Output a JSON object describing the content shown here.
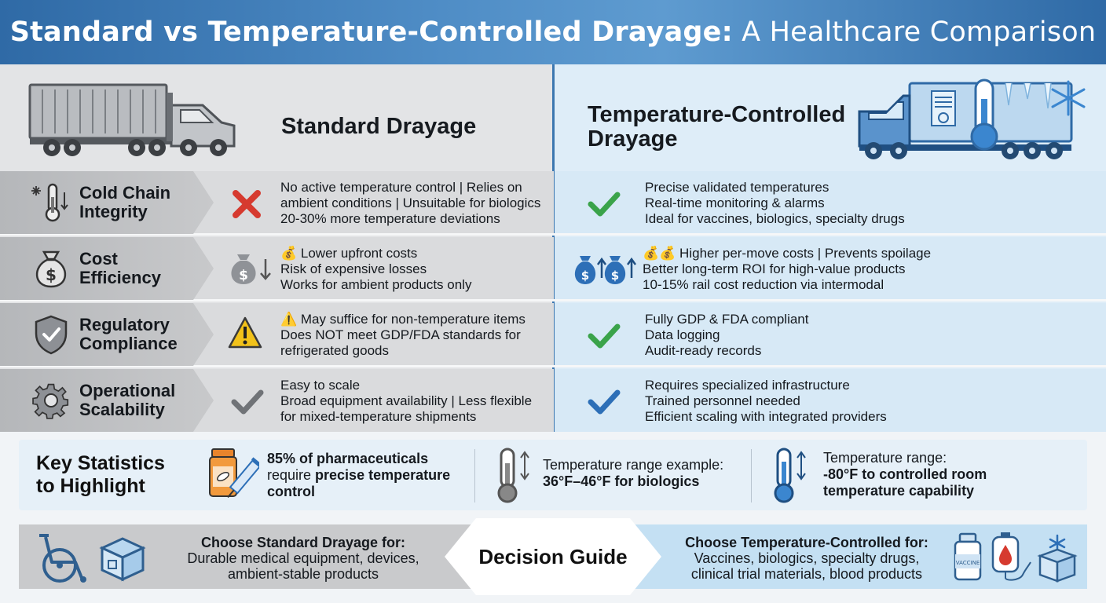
{
  "header": {
    "title_bold": "Standard vs Temperature-Controlled Drayage:",
    "title_rest": " A Healthcare Comparison"
  },
  "columns": {
    "standard": "Standard Drayage",
    "temp": "Temperature-Controlled Drayage"
  },
  "rows": [
    {
      "label": [
        "Cold Chain",
        "Integrity"
      ],
      "icon": "thermometer-snowflake-icon",
      "standard_mark": "red-x-icon",
      "temp_mark": "green-check-icon",
      "standard": [
        "No active temperature control | Relies on",
        "ambient conditions | Unsuitable for biologics",
        "20-30% more temperature deviations"
      ],
      "temp": [
        "Precise validated temperatures",
        "Real-time monitoring & alarms",
        "Ideal for vaccines, biologics, specialty drugs"
      ]
    },
    {
      "label": [
        "Cost",
        "Efficiency"
      ],
      "icon": "money-bag-icon",
      "standard_mark": "money-bag-down-icon",
      "temp_mark": "money-bags-up-icon",
      "standard": [
        "💰 Lower upfront costs",
        "Risk of expensive losses",
        "Works for ambient products only"
      ],
      "temp": [
        "💰💰 Higher per-move costs | Prevents spoilage",
        "Better long-term ROI for high-value products",
        "10-15% rail cost reduction via intermodal"
      ]
    },
    {
      "label": [
        "Regulatory",
        "Compliance"
      ],
      "icon": "shield-check-icon",
      "standard_mark": "warning-icon",
      "temp_mark": "green-check-icon",
      "standard": [
        "⚠️ May suffice for non-temperature items",
        "Does NOT meet GDP/FDA standards for",
        "refrigerated goods"
      ],
      "temp": [
        "Fully GDP & FDA compliant",
        "Data logging",
        "Audit-ready records"
      ]
    },
    {
      "label": [
        "Operational",
        "Scalability"
      ],
      "icon": "gear-icon",
      "standard_mark": "gray-check-icon",
      "temp_mark": "blue-check-icon",
      "standard": [
        "Easy to scale",
        "Broad equipment availability | Less flexible",
        "for mixed-temperature shipments"
      ],
      "temp": [
        "Requires specialized infrastructure",
        "Trained personnel needed",
        "Efficient scaling with integrated providers"
      ]
    }
  ],
  "stats": {
    "title": [
      "Key Statistics",
      "to Highlight"
    ],
    "s1": {
      "bold1": "85% of pharmaceuticals",
      "plain": "require ",
      "bold2": "precise temperature",
      "bold3": "control"
    },
    "s2": {
      "plain": "Temperature range example:",
      "bold": "36°F–46°F for biologics"
    },
    "s3": {
      "plain": "Temperature range:",
      "bold1": "-80°F to controlled room",
      "bold2": "temperature capability"
    }
  },
  "guide": {
    "center": "Decision Guide",
    "left": {
      "title": "Choose Standard Drayage for:",
      "lines": [
        "Durable medical equipment, devices,",
        "ambient-stable products"
      ]
    },
    "right": {
      "title": "Choose Temperature-Controlled for:",
      "lines": [
        "Vaccines, biologics, specialty drugs,",
        "clinical trial materials, blood products"
      ]
    },
    "vial_label": "VACCINE"
  },
  "colors": {
    "accent": "#3c77b0",
    "red": "#d63a2f",
    "green": "#3aa34a",
    "amber": "#f2c21a",
    "blue": "#2d6fb7"
  }
}
